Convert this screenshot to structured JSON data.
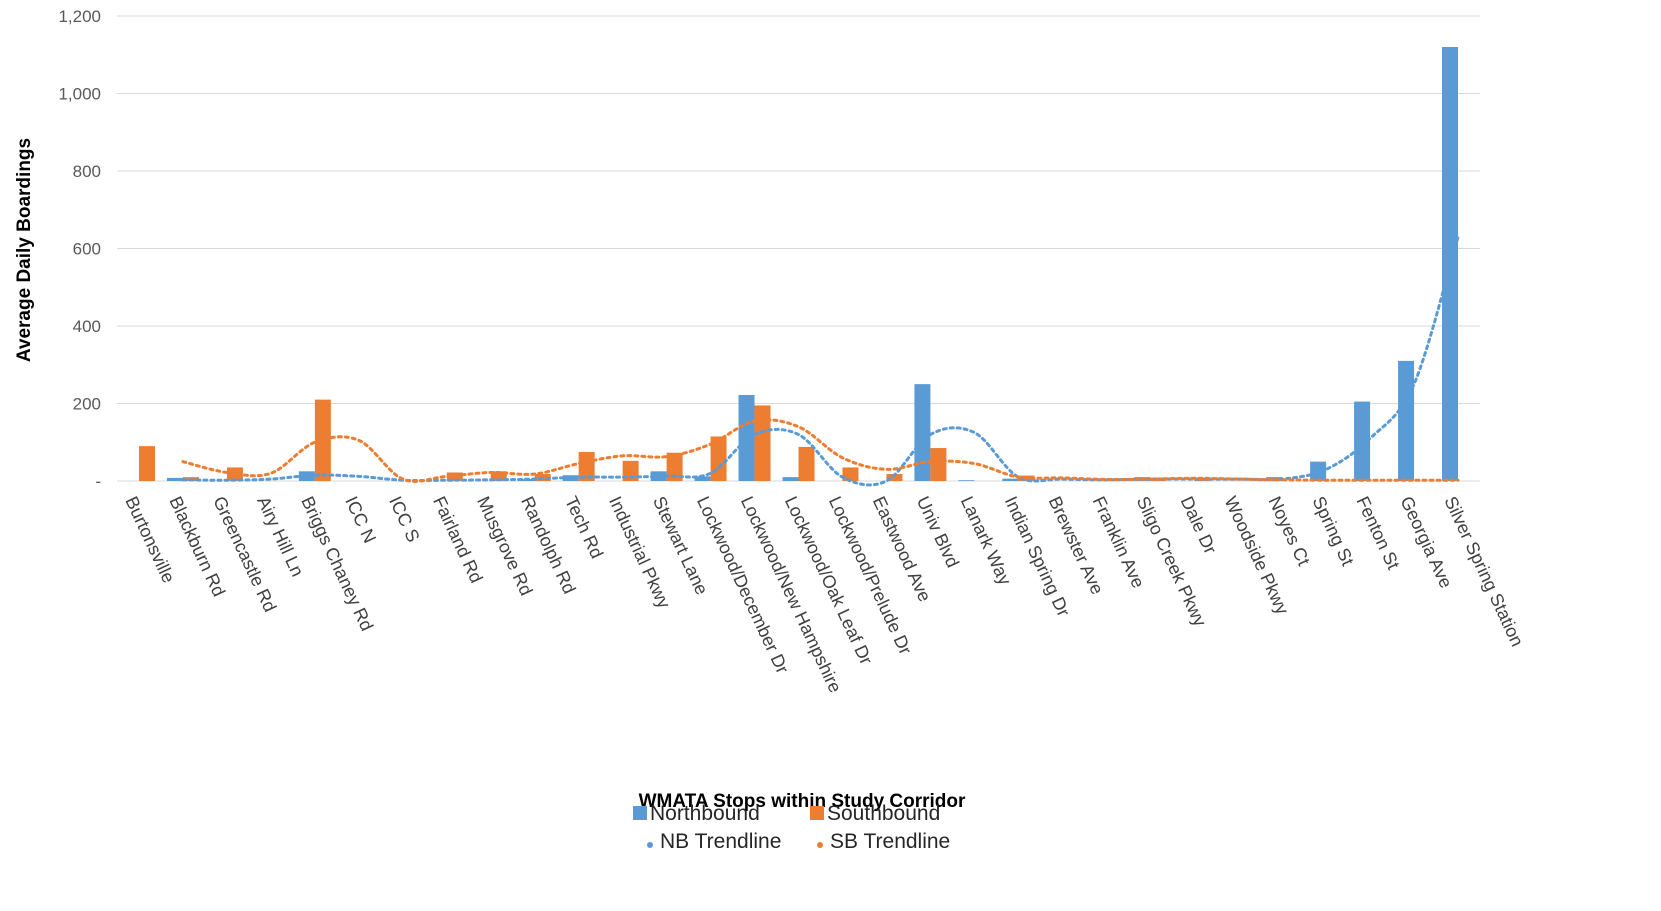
{
  "chart_data": {
    "type": "bar",
    "title": "",
    "xlabel": "WMATA Stops within Study Corridor",
    "ylabel": "Average Daily Boardings",
    "ylim": [
      0,
      1200
    ],
    "yticks": [
      0,
      200,
      400,
      600,
      800,
      1000,
      1200
    ],
    "ytick_labels": [
      "-",
      "200",
      "400",
      "600",
      "800",
      "1,000",
      "1,200"
    ],
    "grid": true,
    "legend_position": "bottom",
    "categories": [
      "Burtonsville",
      "Blackburn Rd",
      "Greencastle Rd",
      "Airy Hill Ln",
      "Briggs Chaney Rd",
      "ICC N",
      "ICC S",
      "Fairland Rd",
      "Musgrove Rd",
      "Randolph Rd",
      "Tech Rd",
      "Industrial Pkwy",
      "Stewart Lane",
      "Lockwood/December Dr",
      "Lockwood/New Hampshire",
      "Lockwood/Oak Leaf Dr",
      "Lockwood/Prelude Dr",
      "Eastwood Ave",
      "Univ Blvd",
      "Lanark Way",
      "Indian Spring Dr",
      "Brewster Ave",
      "Franklin Ave",
      "Sligo Creek Pkwy",
      "Dale Dr",
      "Woodside Pkwy",
      "Noyes Ct",
      "Spring St",
      "Fenton St",
      "Georgia Ave",
      "Silver Spring Station"
    ],
    "series": [
      {
        "name": "Northbound",
        "kind": "bar",
        "color": "#5b9bd5",
        "values": [
          0,
          8,
          0,
          0,
          25,
          0,
          0,
          0,
          0,
          5,
          15,
          0,
          25,
          12,
          222,
          10,
          0,
          0,
          250,
          2,
          6,
          0,
          0,
          10,
          0,
          0,
          10,
          50,
          205,
          310,
          1120
        ]
      },
      {
        "name": "Southbound",
        "kind": "bar",
        "color": "#ed7d31",
        "values": [
          90,
          10,
          35,
          0,
          210,
          0,
          0,
          22,
          25,
          18,
          75,
          52,
          73,
          115,
          195,
          88,
          35,
          18,
          85,
          0,
          14,
          0,
          0,
          8,
          5,
          0,
          0,
          0,
          0,
          0,
          0
        ]
      },
      {
        "name": "NB Trendline",
        "kind": "dotted-line",
        "color": "#5b9bd5",
        "values": [
          null,
          3,
          2,
          5,
          15,
          12,
          2,
          2,
          3,
          5,
          10,
          10,
          13,
          20,
          120,
          120,
          10,
          0,
          120,
          125,
          10,
          5,
          3,
          5,
          5,
          5,
          5,
          30,
          110,
          250,
          630
        ]
      },
      {
        "name": "SB Trendline",
        "kind": "dotted-line",
        "color": "#ed7d31",
        "values": [
          null,
          50,
          22,
          20,
          100,
          105,
          5,
          12,
          22,
          18,
          45,
          65,
          63,
          95,
          155,
          140,
          60,
          30,
          50,
          45,
          10,
          8,
          4,
          5,
          7,
          5,
          3,
          2,
          2,
          2,
          2
        ]
      }
    ]
  }
}
